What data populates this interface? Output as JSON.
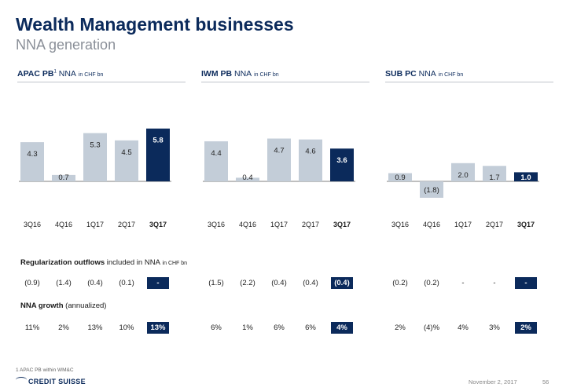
{
  "title": "Wealth Management businesses",
  "subtitle": "NNA generation",
  "panels": [
    {
      "name": "APAC PB",
      "sup": "1",
      "metric": "NNA",
      "unit": "in CHF bn"
    },
    {
      "name": "IWM PB",
      "sup": "",
      "metric": "NNA",
      "unit": "in CHF bn"
    },
    {
      "name": "SUB PC",
      "sup": "",
      "metric": "NNA",
      "unit": "in CHF bn"
    }
  ],
  "chart_data": [
    {
      "type": "bar",
      "title": "APAC PB NNA",
      "categories": [
        "3Q16",
        "4Q16",
        "1Q17",
        "2Q17",
        "3Q17"
      ],
      "values": [
        4.3,
        0.7,
        5.3,
        4.5,
        5.8
      ],
      "labels": [
        "4.3",
        "0.7",
        "5.3",
        "4.5",
        "5.8"
      ],
      "highlight": 4,
      "unit": "CHF bn"
    },
    {
      "type": "bar",
      "title": "IWM PB NNA",
      "categories": [
        "3Q16",
        "4Q16",
        "1Q17",
        "2Q17",
        "3Q17"
      ],
      "values": [
        4.4,
        0.4,
        4.7,
        4.6,
        3.6
      ],
      "labels": [
        "4.4",
        "0.4",
        "4.7",
        "4.6",
        "3.6"
      ],
      "highlight": 4,
      "unit": "CHF bn"
    },
    {
      "type": "bar",
      "title": "SUB PC NNA",
      "categories": [
        "3Q16",
        "4Q16",
        "1Q17",
        "2Q17",
        "3Q17"
      ],
      "values": [
        0.9,
        -1.8,
        2.0,
        1.7,
        1.0
      ],
      "labels": [
        "0.9",
        "(1.8)",
        "2.0",
        "1.7",
        "1.0"
      ],
      "highlight": 4,
      "unit": "CHF bn"
    }
  ],
  "regularization": {
    "label": "Regularization outflows",
    "label_rest": "included in NNA",
    "unit": "in CHF bn",
    "values": [
      [
        "(0.9)",
        "(1.4)",
        "(0.4)",
        "(0.1)",
        "-"
      ],
      [
        "(1.5)",
        "(2.2)",
        "(0.4)",
        "(0.4)",
        "(0.4)"
      ],
      [
        "(0.2)",
        "(0.2)",
        "-",
        "-",
        "-"
      ]
    ]
  },
  "growth": {
    "label": "NNA growth",
    "label_rest": "(annualized)",
    "values": [
      [
        "11%",
        "2%",
        "13%",
        "10%",
        "13%"
      ],
      [
        "6%",
        "1%",
        "6%",
        "6%",
        "4%"
      ],
      [
        "2%",
        "(4)%",
        "4%",
        "3%",
        "2%"
      ]
    ]
  },
  "footnote": "1 APAC PB within WM&C",
  "logo": "CREDIT SUISSE",
  "date": "November 2, 2017",
  "page": "56",
  "colors": {
    "bar": "#c3cdd8",
    "highlight": "#0b2a5b",
    "title": "#0b2a5b"
  }
}
